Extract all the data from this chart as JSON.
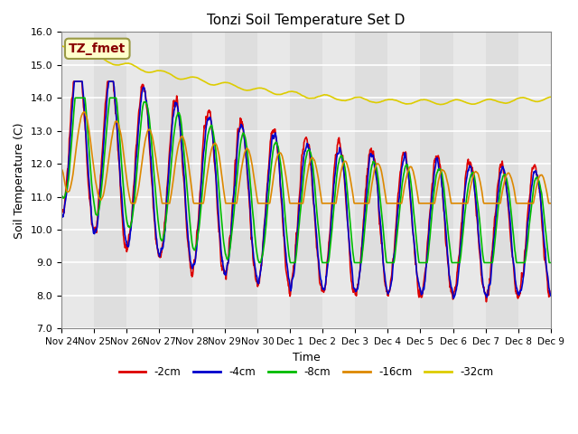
{
  "title": "Tonzi Soil Temperature Set D",
  "xlabel": "Time",
  "ylabel": "Soil Temperature (C)",
  "ylim": [
    7.0,
    16.0
  ],
  "yticks": [
    7.0,
    8.0,
    9.0,
    10.0,
    11.0,
    12.0,
    13.0,
    14.0,
    15.0,
    16.0
  ],
  "xtick_labels": [
    "Nov 24",
    "Nov 25",
    "Nov 26",
    "Nov 27",
    "Nov 28",
    "Nov 29",
    "Nov 30",
    "Dec 1",
    "Dec 2",
    "Dec 3",
    "Dec 4",
    "Dec 5",
    "Dec 6",
    "Dec 7",
    "Dec 8",
    "Dec 9"
  ],
  "legend_labels": [
    "-2cm",
    "-4cm",
    "-8cm",
    "-16cm",
    "-32cm"
  ],
  "line_colors": [
    "#dd0000",
    "#0000cc",
    "#00bb00",
    "#dd8800",
    "#ddcc00"
  ],
  "annotation_text": "TZ_fmet",
  "annotation_bg": "#ffffcc",
  "annotation_border": "#999944",
  "annotation_color": "#880000",
  "plot_bg": "#e8e8e8",
  "grid_color": "#ffffff",
  "n_points": 1440,
  "days": 15
}
